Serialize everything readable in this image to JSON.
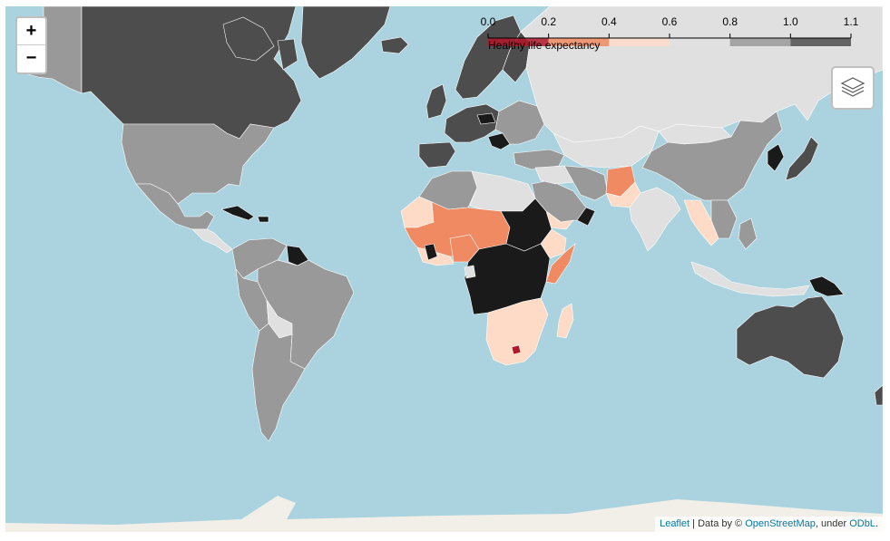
{
  "map": {
    "zoom_in_label": "+",
    "zoom_out_label": "−",
    "ocean_color": "#aad3df",
    "land_color": "#f2efe9"
  },
  "legend": {
    "caption": "Healthy life expectancy",
    "ticks": [
      "0.0",
      "0.2",
      "0.4",
      "0.6",
      "0.8",
      "1.0",
      "1.1"
    ],
    "colors": [
      "#b2182b",
      "#ef8a62",
      "#fddbc7",
      "#e0e0e0",
      "#999999",
      "#4d4d4d",
      "#1a1a1a"
    ]
  },
  "attribution": {
    "leaflet": "Leaflet",
    "separator": " | Data by © ",
    "osm": "OpenStreetMap",
    "under": ", under ",
    "odbl": "ODbL",
    "end": "."
  }
}
